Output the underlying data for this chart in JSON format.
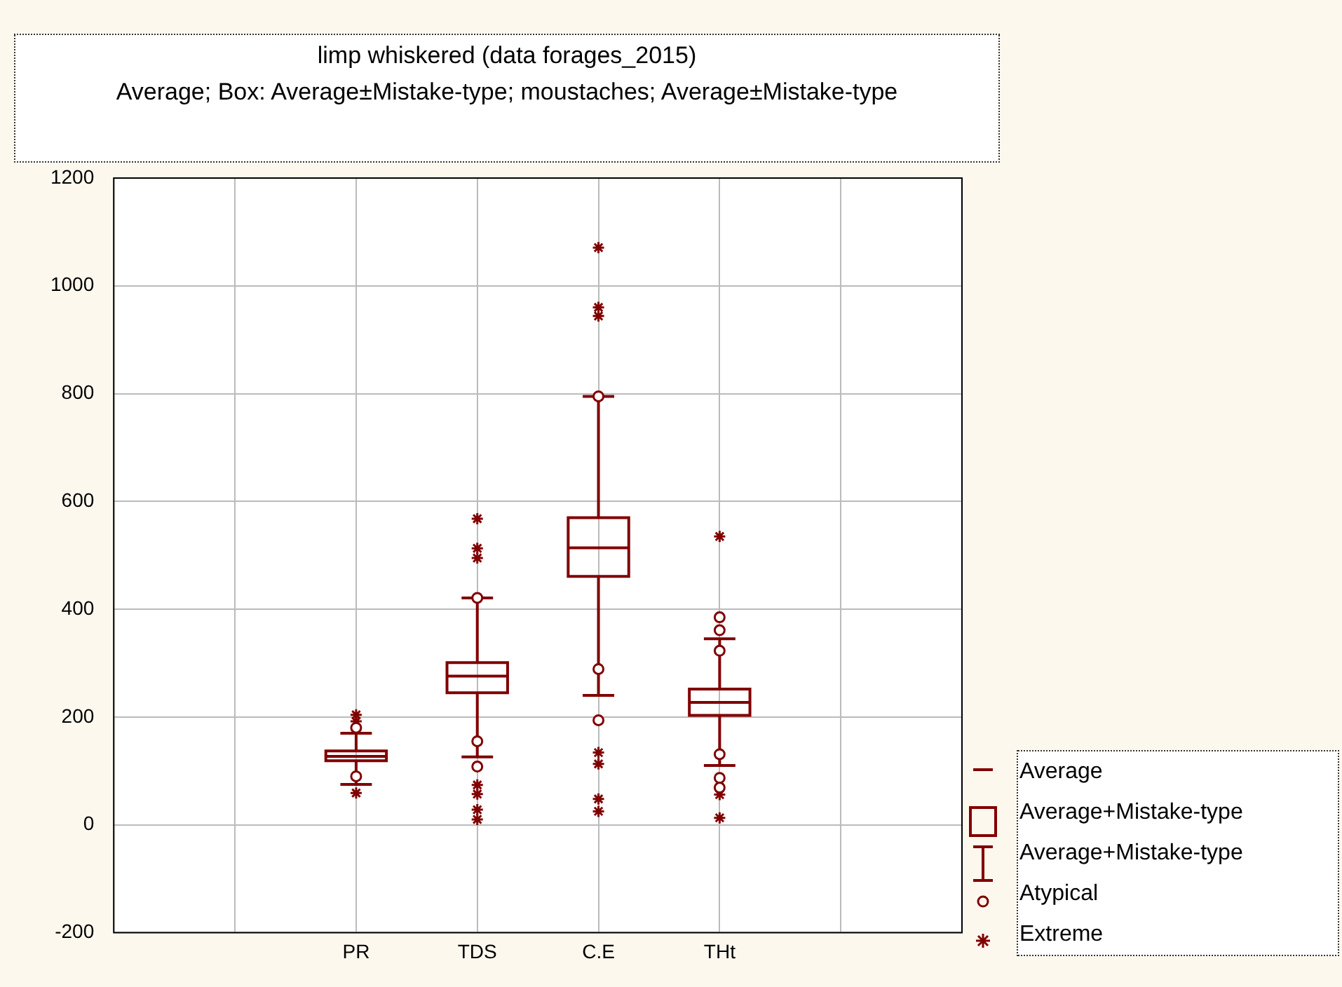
{
  "chart_data": {
    "type": "box",
    "title": "limp whiskered (data forages_2015)",
    "subtitle": "Average; Box: Average±Mistake-type; moustaches; Average±Mistake-type",
    "categories": [
      null,
      null,
      "PR",
      "TDS",
      "C.E",
      "THt",
      null,
      null
    ],
    "ylim": [
      -200,
      1200
    ],
    "yticks": [
      -200,
      0,
      200,
      400,
      600,
      800,
      1000,
      1200
    ],
    "grid": true,
    "series": [
      {
        "color": "#800000",
        "boxes": [
          null,
          null,
          {
            "low": 75,
            "q1": 119,
            "median": 127,
            "q3": 137,
            "high": 170,
            "outliers": [
              180,
              90
            ]
          },
          {
            "low": 126,
            "q1": 245,
            "median": 276,
            "q3": 301,
            "high": 421,
            "outliers": [
              421,
              155,
              108
            ]
          },
          {
            "low": 240,
            "q1": 461,
            "median": 514,
            "q3": 570,
            "high": 795,
            "outliers": [
              795,
              289,
              194
            ]
          },
          {
            "low": 110,
            "q1": 203,
            "median": 227,
            "q3": 252,
            "high": 345,
            "outliers": [
              385,
              361,
              323,
              131,
              87,
              69
            ]
          },
          null,
          null
        ]
      },
      {
        "type": "scatter",
        "marker": "cross",
        "color": "#800000",
        "x": [
          "PR",
          "PR",
          "PR",
          "TDS",
          "TDS",
          "TDS",
          "TDS",
          "TDS",
          "TDS",
          "TDS",
          "C.E",
          "C.E",
          "C.E",
          "C.E",
          "C.E",
          "C.E",
          "C.E",
          "THt",
          "THt",
          "THt"
        ],
        "values": [
          204,
          192,
          59,
          568,
          513,
          495,
          74,
          57,
          28,
          10,
          1071,
          960,
          944,
          134,
          113,
          48,
          25,
          535,
          56,
          13
        ]
      }
    ],
    "annotations": [
      "Average",
      "Average+Mistake-type",
      "Average+Mistake-type",
      "Atypical",
      "Extreme"
    ]
  }
}
